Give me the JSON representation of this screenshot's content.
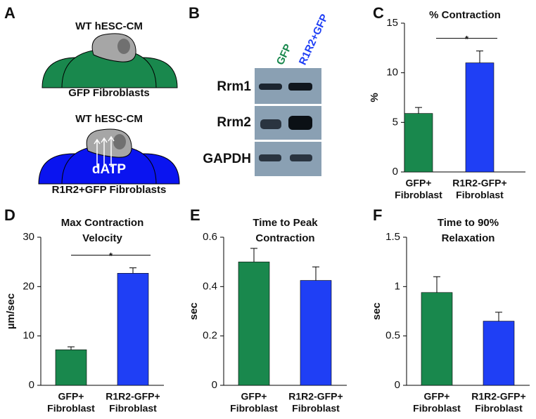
{
  "panels": {
    "A": {
      "letter": "A",
      "cell_top": "WT hESC-CM",
      "fib_top": "GFP Fibroblasts",
      "cell_bottom": "WT hESC-CM",
      "molecule": "dATP",
      "fib_bottom": "R1R2+GFP Fibroblasts"
    },
    "B": {
      "letter": "B",
      "lanes": [
        "GFP",
        "R1R2+GFP"
      ],
      "rows": [
        "Rrm1",
        "Rrm2",
        "GAPDH"
      ]
    }
  },
  "chart_data": [
    {
      "type": "bar",
      "letter": "C",
      "title": [
        "% Contraction"
      ],
      "ylabel": "%",
      "categories": [
        [
          "GFP+",
          "Fibroblast"
        ],
        [
          "R1R2-GFP+",
          "Fibroblast"
        ]
      ],
      "values": [
        5.9,
        11.0
      ],
      "errors": [
        0.6,
        1.2
      ],
      "colors": [
        "#19884d",
        "#1f3ff5"
      ],
      "ylim": [
        0,
        15
      ],
      "yticks": [
        0,
        5,
        10,
        15
      ],
      "annotation": "*"
    },
    {
      "type": "bar",
      "letter": "D",
      "title": [
        "Max Contraction",
        "Velocity"
      ],
      "ylabel": "µm/sec",
      "categories": [
        [
          "GFP+",
          "Fibroblast"
        ],
        [
          "R1R2-GFP+",
          "Fibroblast"
        ]
      ],
      "values": [
        7.2,
        22.7
      ],
      "errors": [
        0.6,
        1.1
      ],
      "colors": [
        "#19884d",
        "#1f3ff5"
      ],
      "ylim": [
        0,
        30
      ],
      "yticks": [
        0,
        10,
        20,
        30
      ],
      "annotation": "*"
    },
    {
      "type": "bar",
      "letter": "E",
      "title": [
        "Time to Peak",
        "Contraction"
      ],
      "ylabel": "sec",
      "categories": [
        [
          "GFP+",
          "Fibroblast"
        ],
        [
          "R1R2-GFP+",
          "Fibroblast"
        ]
      ],
      "values": [
        0.5,
        0.425
      ],
      "errors": [
        0.055,
        0.055
      ],
      "colors": [
        "#19884d",
        "#1f3ff5"
      ],
      "ylim": [
        0,
        0.6
      ],
      "yticks": [
        0,
        0.2,
        0.4,
        0.6
      ]
    },
    {
      "type": "bar",
      "letter": "F",
      "title": [
        "Time to 90%",
        "Relaxation"
      ],
      "ylabel": "sec",
      "categories": [
        [
          "GFP+",
          "Fibroblast"
        ],
        [
          "R1R2-GFP+",
          "Fibroblast"
        ]
      ],
      "values": [
        0.94,
        0.65
      ],
      "errors": [
        0.16,
        0.09
      ],
      "colors": [
        "#19884d",
        "#1f3ff5"
      ],
      "ylim": [
        0,
        1.5
      ],
      "yticks": [
        0,
        0.5,
        1,
        1.5
      ]
    }
  ]
}
